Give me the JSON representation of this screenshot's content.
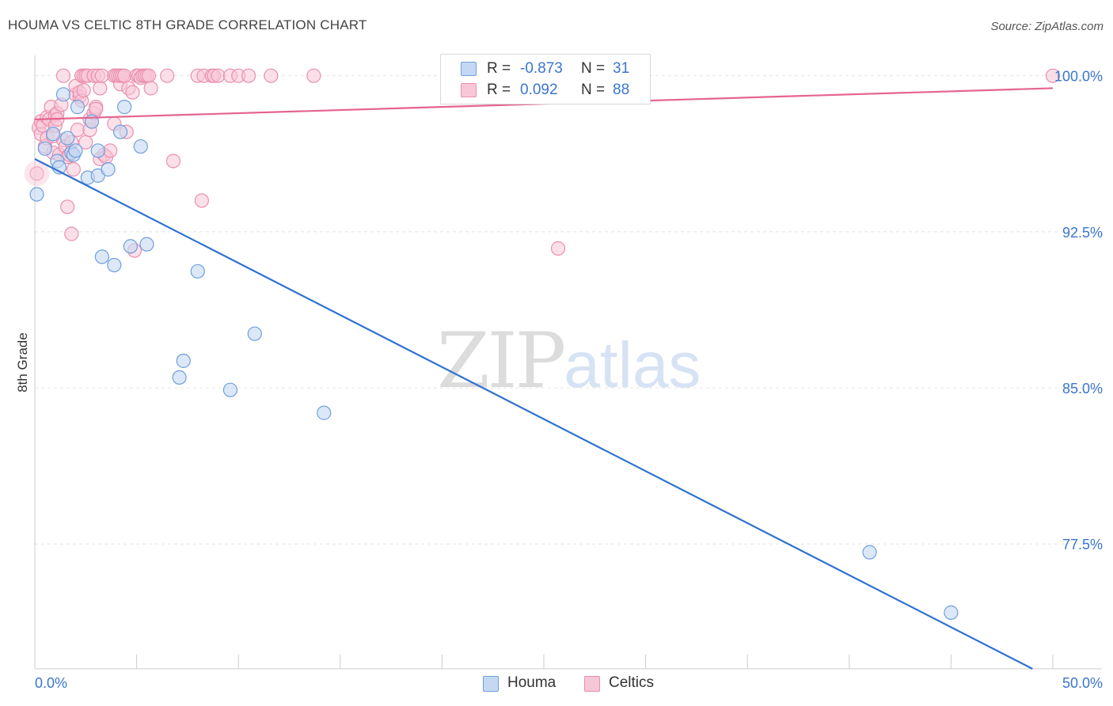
{
  "title": "HOUMA VS CELTIC 8TH GRADE CORRELATION CHART",
  "source": "Source: ZipAtlas.com",
  "watermark": {
    "zip": "ZIP",
    "atlas": "atlas"
  },
  "legend": {
    "r_label": "R =",
    "n_label": "N =",
    "rows": [
      {
        "r": "-0.873",
        "n": "31"
      },
      {
        "r": "0.092",
        "n": "88"
      }
    ]
  },
  "bottom_legend": {
    "houma": "Houma",
    "celtics": "Celtics"
  },
  "colors": {
    "houma_fill": "#c5d8f2",
    "houma_stroke": "#6f9fdd",
    "houma_line": "#2f72d0",
    "celtics_fill": "#f8c7d7",
    "celtics_stroke": "#ea8fae",
    "celtics_line": "#e5648f",
    "axis_text": "#3a76cc",
    "grid": "#e4e4e4"
  },
  "chart_data": {
    "type": "scatter",
    "title": "HOUMA VS CELTIC 8TH GRADE CORRELATION CHART",
    "xlabel": "",
    "ylabel": "8th Grade",
    "xlim": [
      0,
      50
    ],
    "ylim": [
      71.5,
      100.9
    ],
    "x_tick_labels": [
      "0.0%",
      "50.0%"
    ],
    "y_ticks": [
      77.5,
      85.0,
      92.5,
      100.0
    ],
    "y_tick_labels": [
      "77.5%",
      "85.0%",
      "92.5%",
      "100.0%"
    ],
    "grid": true,
    "series": [
      {
        "name": "Houma",
        "r": -0.873,
        "n": 31,
        "trend": {
          "x": [
            0.0,
            49.0
          ],
          "y": [
            96.0,
            71.5
          ]
        },
        "points": [
          [
            0.1,
            94.3
          ],
          [
            0.5,
            96.5
          ],
          [
            0.9,
            97.2
          ],
          [
            1.1,
            95.9
          ],
          [
            1.2,
            95.6
          ],
          [
            1.4,
            99.1
          ],
          [
            1.6,
            97.0
          ],
          [
            1.8,
            96.3
          ],
          [
            1.9,
            96.2
          ],
          [
            2.0,
            96.4
          ],
          [
            2.1,
            98.5
          ],
          [
            2.6,
            95.1
          ],
          [
            2.8,
            97.8
          ],
          [
            3.1,
            95.2
          ],
          [
            3.1,
            96.4
          ],
          [
            3.3,
            91.3
          ],
          [
            3.6,
            95.5
          ],
          [
            3.9,
            90.9
          ],
          [
            4.2,
            97.3
          ],
          [
            4.4,
            98.5
          ],
          [
            4.7,
            91.8
          ],
          [
            5.2,
            96.6
          ],
          [
            5.5,
            91.9
          ],
          [
            7.1,
            85.5
          ],
          [
            7.3,
            86.3
          ],
          [
            8.0,
            90.6
          ],
          [
            9.6,
            84.9
          ],
          [
            10.8,
            87.6
          ],
          [
            14.2,
            83.8
          ],
          [
            41.0,
            77.1
          ],
          [
            45.0,
            74.2
          ]
        ]
      },
      {
        "name": "Celtics",
        "r": 0.092,
        "n": 88,
        "trend": {
          "x": [
            0.0,
            50.0
          ],
          "y": [
            97.9,
            99.4
          ]
        },
        "points": [
          [
            0.1,
            95.3
          ],
          [
            0.2,
            97.5
          ],
          [
            0.3,
            97.2
          ],
          [
            0.3,
            97.8
          ],
          [
            0.4,
            97.6
          ],
          [
            0.5,
            96.6
          ],
          [
            0.6,
            97.0
          ],
          [
            0.6,
            98.0
          ],
          [
            0.7,
            97.9
          ],
          [
            0.8,
            98.5
          ],
          [
            0.9,
            97.1
          ],
          [
            0.9,
            96.3
          ],
          [
            1.0,
            98.1
          ],
          [
            1.0,
            97.6
          ],
          [
            1.1,
            98.2
          ],
          [
            1.1,
            97.9
          ],
          [
            1.2,
            96.2
          ],
          [
            1.3,
            98.6
          ],
          [
            1.4,
            96.9
          ],
          [
            1.4,
            100.0
          ],
          [
            1.5,
            96.6
          ],
          [
            1.6,
            93.7
          ],
          [
            1.6,
            96.1
          ],
          [
            1.7,
            96.2
          ],
          [
            1.8,
            96.8
          ],
          [
            1.8,
            92.4
          ],
          [
            1.9,
            95.5
          ],
          [
            2.0,
            99.1
          ],
          [
            2.0,
            99.5
          ],
          [
            2.1,
            97.4
          ],
          [
            2.2,
            99.0
          ],
          [
            2.2,
            99.2
          ],
          [
            2.3,
            98.8
          ],
          [
            2.3,
            100.0
          ],
          [
            2.4,
            99.3
          ],
          [
            2.4,
            100.0
          ],
          [
            2.5,
            96.8
          ],
          [
            2.5,
            100.0
          ],
          [
            2.6,
            100.0
          ],
          [
            2.7,
            97.9
          ],
          [
            2.7,
            97.4
          ],
          [
            2.8,
            97.8
          ],
          [
            2.9,
            98.2
          ],
          [
            2.9,
            100.0
          ],
          [
            3.0,
            98.5
          ],
          [
            3.0,
            98.4
          ],
          [
            3.1,
            100.0
          ],
          [
            3.2,
            99.4
          ],
          [
            3.2,
            96.0
          ],
          [
            3.3,
            100.0
          ],
          [
            3.4,
            96.2
          ],
          [
            3.5,
            96.1
          ],
          [
            3.7,
            96.4
          ],
          [
            3.9,
            97.7
          ],
          [
            3.9,
            100.0
          ],
          [
            4.0,
            100.0
          ],
          [
            4.1,
            100.0
          ],
          [
            4.2,
            99.6
          ],
          [
            4.2,
            100.0
          ],
          [
            4.3,
            100.0
          ],
          [
            4.4,
            100.0
          ],
          [
            4.5,
            97.3
          ],
          [
            4.6,
            99.4
          ],
          [
            4.8,
            99.2
          ],
          [
            4.9,
            91.6
          ],
          [
            5.0,
            100.0
          ],
          [
            5.1,
            100.0
          ],
          [
            5.2,
            99.9
          ],
          [
            5.3,
            100.0
          ],
          [
            5.4,
            100.0
          ],
          [
            5.5,
            100.0
          ],
          [
            5.6,
            100.0
          ],
          [
            5.7,
            99.4
          ],
          [
            6.5,
            100.0
          ],
          [
            6.8,
            95.9
          ],
          [
            8.0,
            100.0
          ],
          [
            8.2,
            94.0
          ],
          [
            8.3,
            100.0
          ],
          [
            8.7,
            100.0
          ],
          [
            8.8,
            100.0
          ],
          [
            9.0,
            100.0
          ],
          [
            9.6,
            100.0
          ],
          [
            10.0,
            100.0
          ],
          [
            10.5,
            100.0
          ],
          [
            11.6,
            100.0
          ],
          [
            13.7,
            100.0
          ],
          [
            25.7,
            91.7
          ],
          [
            50.0,
            100.0
          ]
        ]
      }
    ]
  }
}
